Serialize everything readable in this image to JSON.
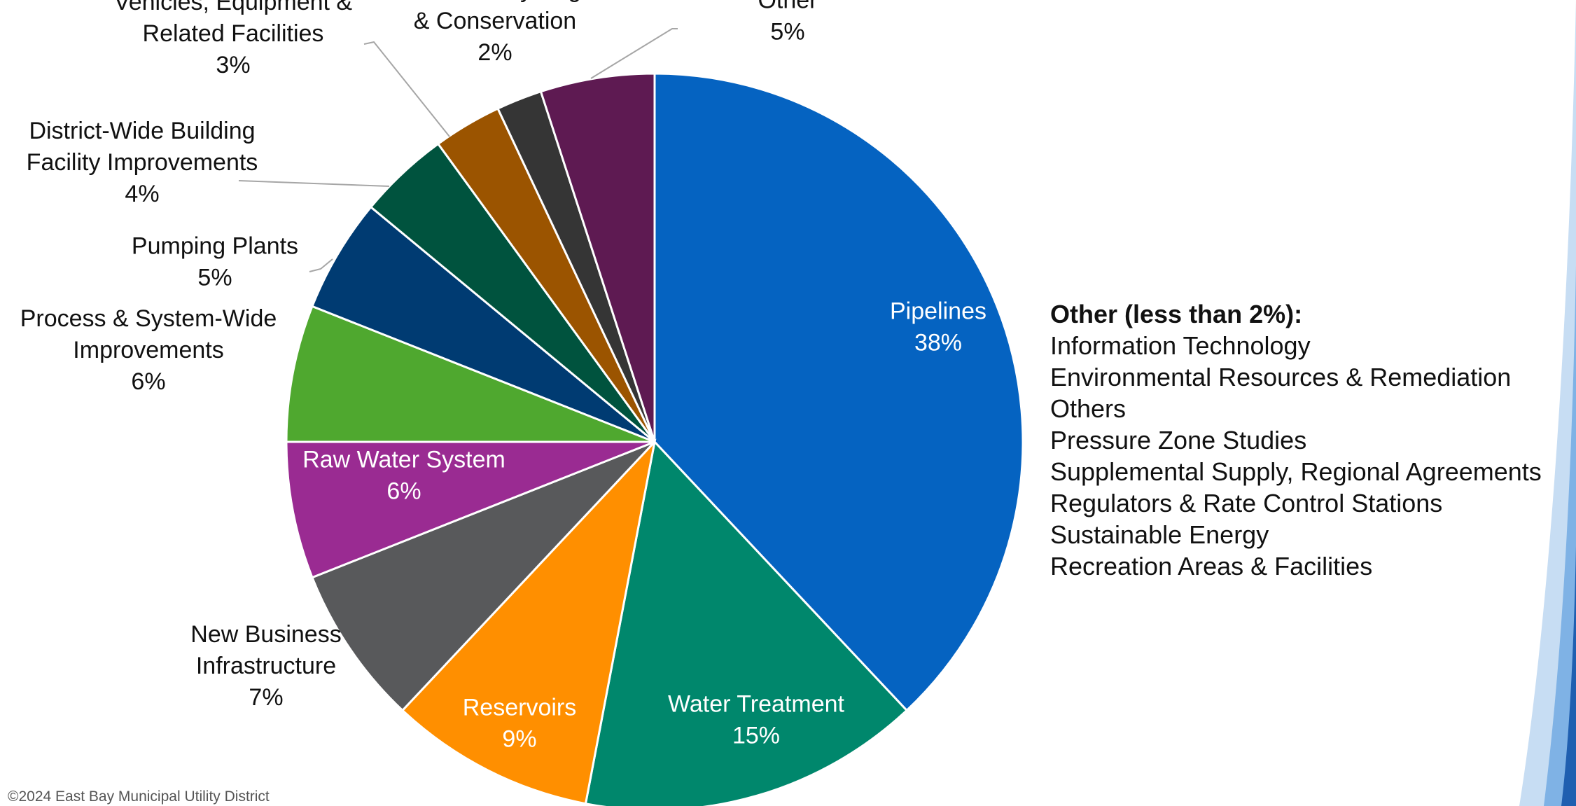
{
  "chart_data": {
    "type": "pie",
    "title": "",
    "slices": [
      {
        "label_lines": [
          "Pipelines"
        ],
        "value": 38,
        "value_label": "38%",
        "color": "#0563c1"
      },
      {
        "label_lines": [
          "Water Treatment"
        ],
        "value": 15,
        "value_label": "15%",
        "color": "#00876c"
      },
      {
        "label_lines": [
          "Reservoirs"
        ],
        "value": 9,
        "value_label": "9%",
        "color": "#ff8f00"
      },
      {
        "label_lines": [
          "New Business",
          "Infrastructure"
        ],
        "value": 7,
        "value_label": "7%",
        "color": "#58595b"
      },
      {
        "label_lines": [
          "Raw Water System"
        ],
        "value": 6,
        "value_label": "6%",
        "color": "#9a2b92"
      },
      {
        "label_lines": [
          "Process & System-Wide",
          "Improvements"
        ],
        "value": 6,
        "value_label": "6%",
        "color": "#4fa82f"
      },
      {
        "label_lines": [
          "Pumping Plants"
        ],
        "value": 5,
        "value_label": "5%",
        "color": "#003b72"
      },
      {
        "label_lines": [
          "District-Wide Building",
          "Facility Improvements"
        ],
        "value": 4,
        "value_label": "4%",
        "color": "#00533e"
      },
      {
        "label_lines": [
          "Vehicles, Equipment &",
          "Related Facilities"
        ],
        "value": 3,
        "value_label": "3%",
        "color": "#9b5400"
      },
      {
        "label_lines": [
          "Water Recycling",
          "& Conservation"
        ],
        "value": 2,
        "value_label": "2%",
        "color": "#353535"
      },
      {
        "label_lines": [
          "Other"
        ],
        "value": 5,
        "value_label": "5%",
        "color": "#5e1a52"
      }
    ]
  },
  "other_panel": {
    "title": "Other (less than 2%):",
    "items": [
      "Information Technology",
      "Environmental Resources & Remediation",
      "Others",
      "Pressure Zone Studies",
      "Supplemental Supply, Regional Agreements",
      "Regulators & Rate Control Stations",
      "Sustainable Energy",
      "Recreation Areas & Facilities"
    ]
  },
  "footer": {
    "copyright": "©2024 East Bay Municipal Utility District"
  },
  "logo": {
    "icon": "water-drop-swoosh-icon",
    "colors": [
      "#1f5fb0",
      "#7fb2e5",
      "#c7ddf3"
    ]
  }
}
